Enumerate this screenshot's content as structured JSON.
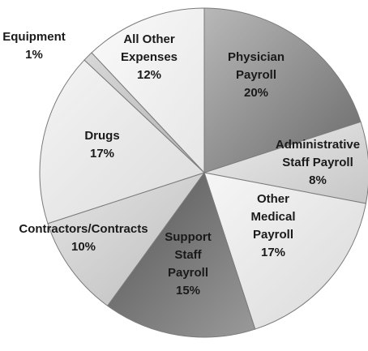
{
  "chart_data": {
    "type": "pie",
    "title": "",
    "start_angle_deg": 0,
    "direction": "clockwise",
    "slices": [
      {
        "label_lines": [
          "Physician",
          "Payroll"
        ],
        "value": 20,
        "value_label": "20%",
        "color": "#8f8f8f"
      },
      {
        "label_lines": [
          "Administrative",
          "Staff Payroll"
        ],
        "value": 8,
        "value_label": "8%",
        "color": "#dadada"
      },
      {
        "label_lines": [
          "Other",
          "Medical",
          "Payroll"
        ],
        "value": 17,
        "value_label": "17%",
        "color": "#ebebeb"
      },
      {
        "label_lines": [
          "Support",
          "Staff",
          "Payroll"
        ],
        "value": 15,
        "value_label": "15%",
        "color": "#6d6d6d"
      },
      {
        "label_lines": [
          "Contractors/Contracts"
        ],
        "value": 10,
        "value_label": "10%",
        "color": "#d4d4d4"
      },
      {
        "label_lines": [
          "Drugs"
        ],
        "value": 17,
        "value_label": "17%",
        "color": "#e8e8e8"
      },
      {
        "label_lines": [
          "Equipment"
        ],
        "value": 1,
        "value_label": "1%",
        "color": "#c4c4c4"
      },
      {
        "label_lines": [
          "All Other",
          "Expenses"
        ],
        "value": 12,
        "value_label": "12%",
        "color": "#f0f0f0"
      }
    ]
  }
}
